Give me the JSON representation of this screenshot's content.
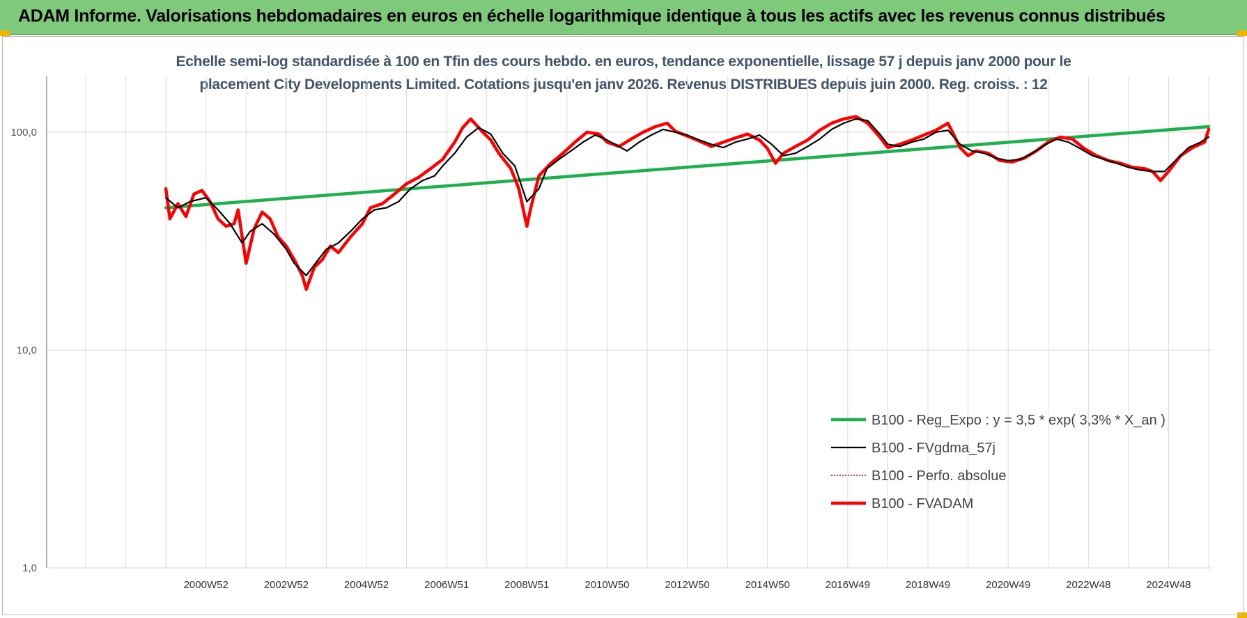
{
  "header": {
    "title": "ADAM Informe. Valorisations hebdomadaires en euros en échelle logarithmique identique à tous les actifs avec les revenus connus distribués"
  },
  "chart_data": {
    "type": "line",
    "title_line1": "Echelle semi-log standardisée à 100 en Tfin des cours hebdo. en euros, tendance exponentielle, lissage 57 j depuis janv 2000 pour le",
    "title_line2": "placement City Developments Limited. Cotations jusqu'en janv 2026. Revenus DISTRIBUES depuis juin 2000. Reg. croiss. : 12",
    "y_scale": "log",
    "ylim": [
      1,
      180
    ],
    "y_ticks": [
      1,
      10,
      100
    ],
    "y_tick_labels": [
      "1,0",
      "10,0",
      "100,0"
    ],
    "x_range": [
      1998.0,
      2026.0
    ],
    "x_tick_labels": [
      "2000W52",
      "2002W52",
      "2004W52",
      "2006W51",
      "2008W51",
      "2010W50",
      "2012W50",
      "2014W50",
      "2016W49",
      "2018W49",
      "2020W49",
      "2022W48",
      "2024W48"
    ],
    "x_tick_years": [
      2001,
      2003,
      2005,
      2007,
      2009,
      2011,
      2013,
      2015,
      2017,
      2019,
      2021,
      2023,
      2025
    ],
    "gridline_years": [
      1998,
      1999,
      2000,
      2001,
      2002,
      2003,
      2004,
      2005,
      2006,
      2007,
      2008,
      2009,
      2010,
      2011,
      2012,
      2013,
      2014,
      2015,
      2016,
      2017,
      2018,
      2019,
      2020,
      2021,
      2022,
      2023,
      2024,
      2025,
      2026
    ],
    "grid": true,
    "legend_position": "bottom-right",
    "series": [
      {
        "name": "B100 - Reg_Expo : y = 3,5 * exp( 3,3% *  X_an )",
        "color": "#1db04c",
        "style": "thick",
        "x": [
          2000.0,
          2026.0
        ],
        "y": [
          45,
          106
        ]
      },
      {
        "name": "B100 - FVgdma_57j",
        "color": "#000000",
        "style": "solid",
        "x": [
          2000.0,
          2000.3,
          2000.6,
          2001.0,
          2001.3,
          2001.6,
          2001.9,
          2002.1,
          2002.4,
          2002.7,
          2003.0,
          2003.2,
          2003.5,
          2003.8,
          2004.0,
          2004.3,
          2004.6,
          2004.9,
          2005.2,
          2005.5,
          2005.8,
          2006.1,
          2006.4,
          2006.7,
          2006.9,
          2007.2,
          2007.5,
          2007.8,
          2008.1,
          2008.4,
          2008.7,
          2009.0,
          2009.3,
          2009.5,
          2009.8,
          2010.1,
          2010.4,
          2010.7,
          2010.9,
          2011.2,
          2011.5,
          2011.8,
          2012.1,
          2012.4,
          2012.7,
          2013.0,
          2013.3,
          2013.6,
          2013.9,
          2014.2,
          2014.5,
          2014.8,
          2015.1,
          2015.4,
          2015.7,
          2016.0,
          2016.3,
          2016.6,
          2016.9,
          2017.2,
          2017.5,
          2017.8,
          2018.0,
          2018.3,
          2018.6,
          2018.9,
          2019.2,
          2019.5,
          2019.8,
          2020.1,
          2020.4,
          2020.7,
          2021.0,
          2021.3,
          2021.6,
          2021.9,
          2022.2,
          2022.5,
          2022.8,
          2023.1,
          2023.4,
          2023.7,
          2024.0,
          2024.3,
          2024.6,
          2024.9,
          2025.2,
          2025.5,
          2025.8,
          2026.0
        ],
        "y": [
          50,
          45,
          48,
          50,
          44,
          38,
          31,
          35,
          38,
          34,
          29,
          25,
          22,
          26,
          29,
          31,
          35,
          40,
          44,
          45,
          48,
          55,
          60,
          63,
          70,
          80,
          95,
          105,
          98,
          80,
          70,
          48,
          55,
          68,
          75,
          82,
          90,
          97,
          94,
          88,
          82,
          90,
          97,
          103,
          100,
          97,
          92,
          88,
          85,
          90,
          93,
          97,
          88,
          78,
          80,
          86,
          93,
          103,
          110,
          115,
          113,
          98,
          88,
          86,
          90,
          93,
          100,
          102,
          88,
          82,
          80,
          76,
          74,
          75,
          80,
          87,
          93,
          90,
          84,
          78,
          75,
          72,
          69,
          67,
          66,
          66,
          75,
          85,
          90,
          95
        ]
      },
      {
        "name": "B100 - Perfo. absolue",
        "color": "#c00000",
        "style": "dotted",
        "x": [],
        "y": []
      },
      {
        "name": "B100 - FVADAM",
        "color": "#ff0000",
        "style": "thick",
        "x": [
          2000.0,
          2000.1,
          2000.3,
          2000.5,
          2000.7,
          2000.9,
          2001.1,
          2001.3,
          2001.5,
          2001.7,
          2001.8,
          2002.0,
          2002.2,
          2002.4,
          2002.6,
          2002.8,
          2003.0,
          2003.2,
          2003.4,
          2003.5,
          2003.7,
          2003.9,
          2004.1,
          2004.3,
          2004.6,
          2004.9,
          2005.1,
          2005.4,
          2005.7,
          2006.0,
          2006.3,
          2006.6,
          2006.9,
          2007.2,
          2007.4,
          2007.6,
          2007.9,
          2008.1,
          2008.3,
          2008.6,
          2008.8,
          2009.0,
          2009.1,
          2009.3,
          2009.6,
          2009.9,
          2010.2,
          2010.5,
          2010.8,
          2011.0,
          2011.3,
          2011.6,
          2011.9,
          2012.2,
          2012.5,
          2012.7,
          2013.0,
          2013.3,
          2013.6,
          2013.9,
          2014.2,
          2014.5,
          2014.8,
          2015.0,
          2015.2,
          2015.4,
          2015.7,
          2016.0,
          2016.3,
          2016.6,
          2016.9,
          2017.2,
          2017.5,
          2017.8,
          2018.0,
          2018.3,
          2018.6,
          2018.9,
          2019.2,
          2019.5,
          2019.8,
          2020.0,
          2020.2,
          2020.5,
          2020.8,
          2021.1,
          2021.4,
          2021.7,
          2022.0,
          2022.3,
          2022.6,
          2022.9,
          2023.2,
          2023.5,
          2023.8,
          2024.1,
          2024.4,
          2024.6,
          2024.8,
          2025.0,
          2025.3,
          2025.6,
          2025.9,
          2026.0
        ],
        "y": [
          55,
          40,
          47,
          41,
          52,
          54,
          48,
          40,
          37,
          38,
          44,
          25,
          36,
          43,
          40,
          33,
          30,
          26,
          22,
          19,
          24,
          26,
          30,
          28,
          33,
          38,
          45,
          47,
          52,
          58,
          62,
          68,
          75,
          90,
          105,
          115,
          100,
          92,
          80,
          68,
          55,
          37,
          45,
          63,
          72,
          80,
          90,
          100,
          98,
          90,
          86,
          93,
          100,
          106,
          110,
          101,
          96,
          91,
          86,
          90,
          94,
          98,
          92,
          84,
          72,
          80,
          86,
          92,
          102,
          110,
          115,
          118,
          110,
          95,
          85,
          88,
          92,
          97,
          102,
          110,
          85,
          78,
          82,
          80,
          74,
          73,
          76,
          82,
          90,
          95,
          93,
          84,
          78,
          74,
          72,
          69,
          68,
          66,
          60,
          66,
          78,
          85,
          90,
          103
        ]
      }
    ]
  }
}
